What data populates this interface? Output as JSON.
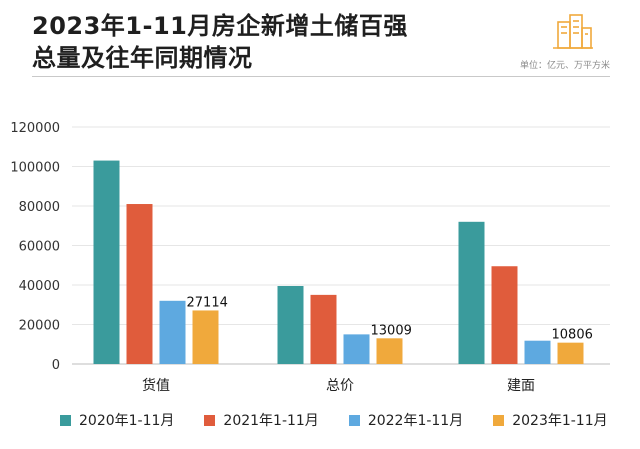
{
  "title_line1": "2023年1-11月房企新增土储百强",
  "title_line2": "总量及往年同期情况",
  "unit_note": "单位：亿元、万平方米",
  "chart_data": {
    "type": "bar",
    "categories": [
      "货值",
      "总价",
      "建面"
    ],
    "ylim": [
      0,
      120000
    ],
    "yticks": [
      0,
      20000,
      40000,
      60000,
      80000,
      100000,
      120000
    ],
    "series": [
      {
        "name": "2020年1-11月",
        "color": "#3a9b9c",
        "values": [
          103000,
          39500,
          72000
        ]
      },
      {
        "name": "2021年1-11月",
        "color": "#e05c3c",
        "values": [
          81000,
          35000,
          49500
        ]
      },
      {
        "name": "2022年1-11月",
        "color": "#5ea9e0",
        "values": [
          32000,
          15000,
          11800
        ]
      },
      {
        "name": "2023年1-11月",
        "color": "#f0a93c",
        "values": [
          27114,
          13009,
          10806
        ]
      }
    ],
    "data_labels": [
      {
        "series": 3,
        "category": 0,
        "text": "27114"
      },
      {
        "series": 3,
        "category": 1,
        "text": "13009"
      },
      {
        "series": 3,
        "category": 2,
        "text": "10806"
      }
    ],
    "legend_position": "bottom",
    "grid": true
  }
}
